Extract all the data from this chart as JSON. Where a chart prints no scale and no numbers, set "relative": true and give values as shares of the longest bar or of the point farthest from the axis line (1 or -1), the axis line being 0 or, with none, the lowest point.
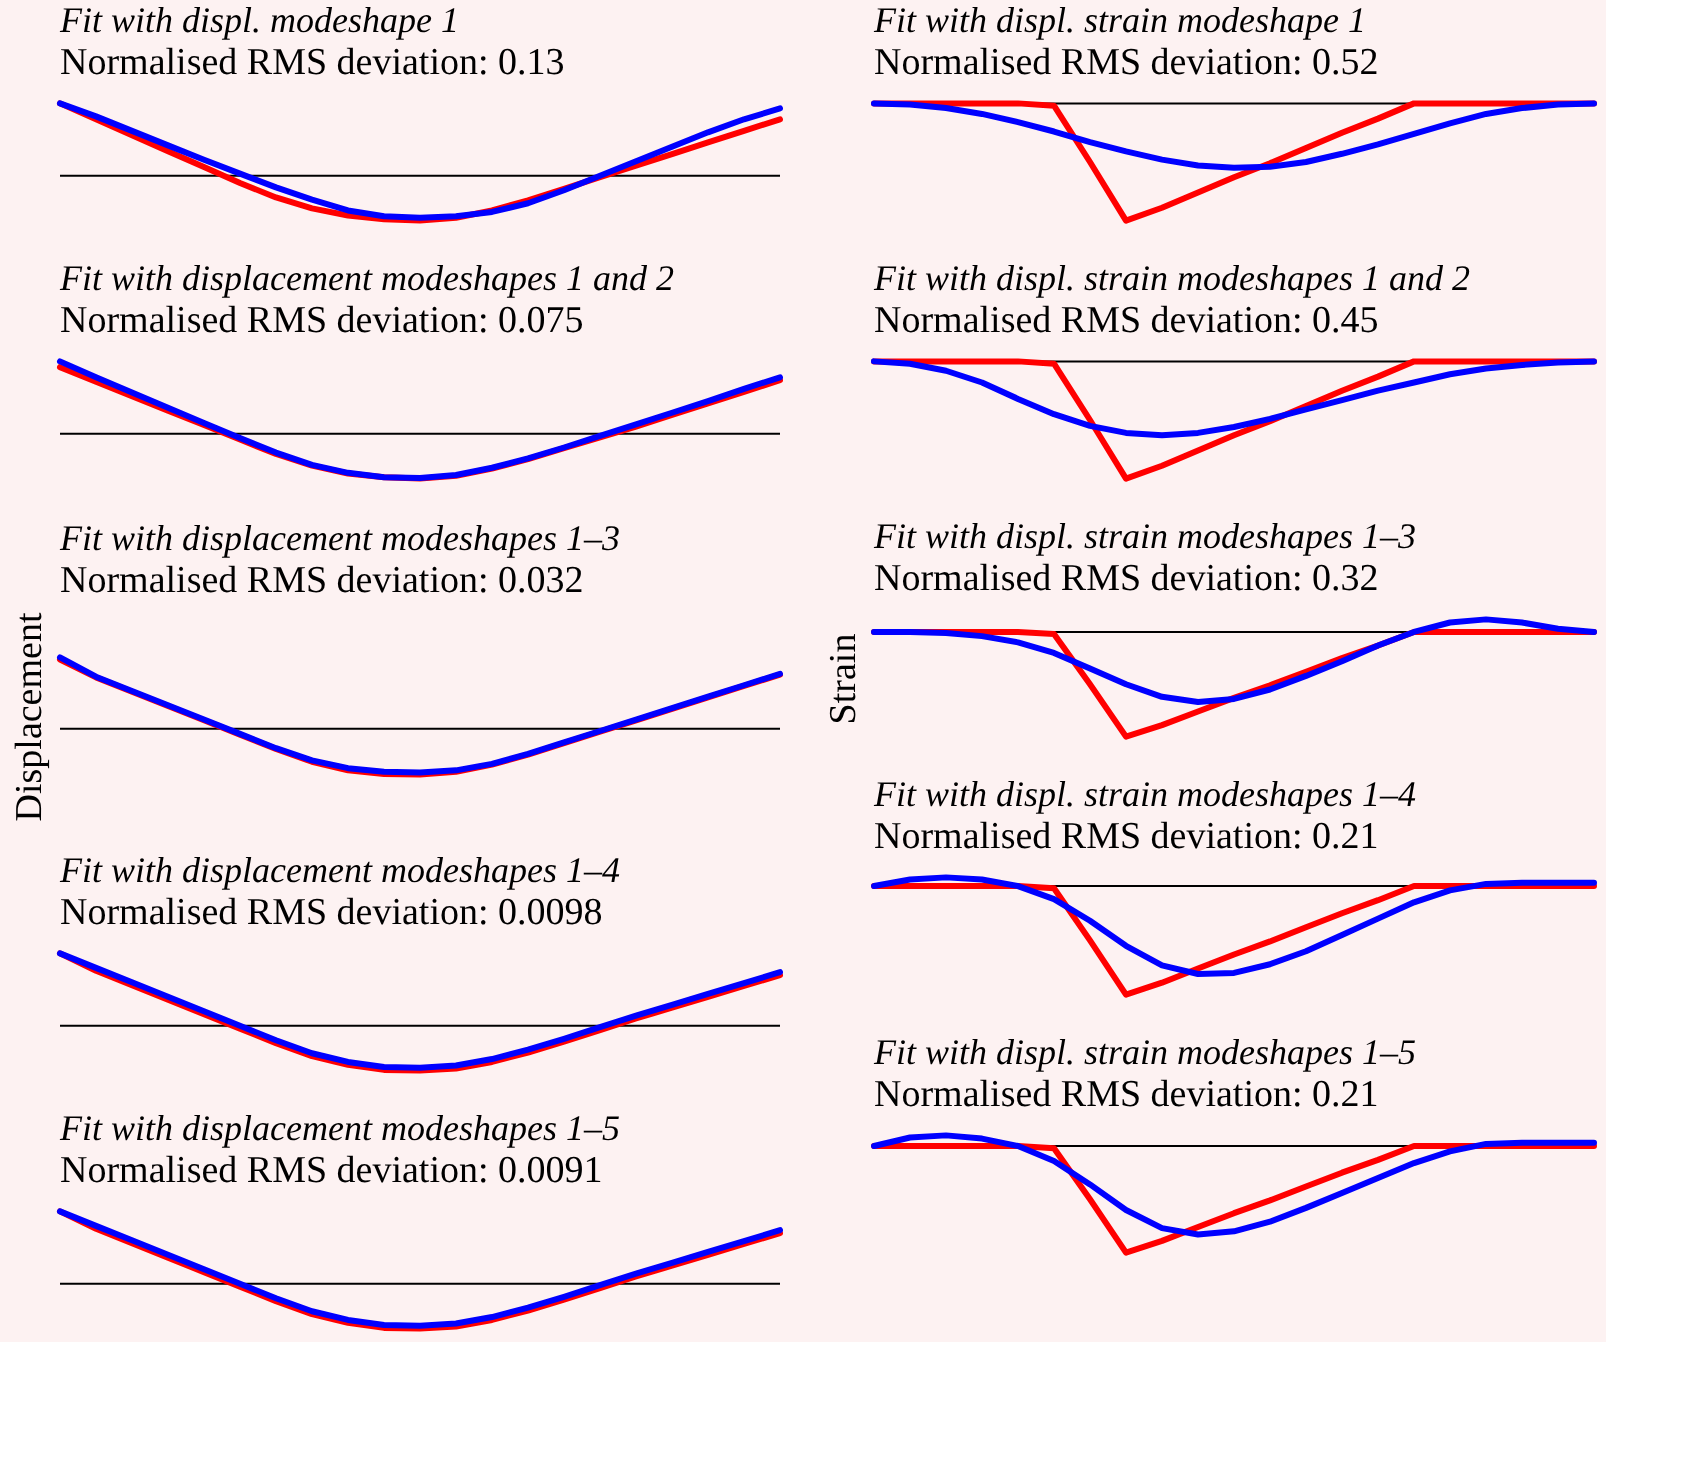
{
  "chart_data": [
    {
      "type": "line",
      "title": "Fit with displ. modeshape 1",
      "subtitle": "Normalised RMS deviation: 0.13",
      "relative": true,
      "categories": [
        null,
        null,
        null,
        null,
        null,
        null,
        null,
        null,
        null,
        null,
        null,
        null,
        null,
        null,
        null,
        null,
        null,
        null,
        null,
        null,
        null
      ],
      "series": [
        {
          "color": "#ff0000",
          "values": [
            1.0,
            0.78,
            0.56,
            0.34,
            0.12,
            -0.1,
            -0.3,
            -0.45,
            -0.55,
            -0.6,
            -0.62,
            -0.58,
            -0.48,
            -0.34,
            -0.18,
            -0.02,
            0.14,
            0.3,
            0.46,
            0.62,
            0.78
          ]
        },
        {
          "color": "#0000ff",
          "values": [
            1.0,
            0.82,
            0.62,
            0.42,
            0.22,
            0.03,
            -0.16,
            -0.33,
            -0.48,
            -0.56,
            -0.58,
            -0.56,
            -0.5,
            -0.38,
            -0.2,
            0.0,
            0.2,
            0.4,
            0.6,
            0.78,
            0.93
          ]
        }
      ]
    },
    {
      "type": "line",
      "title": "Fit with displ. strain modeshape 1",
      "subtitle": "Normalised RMS deviation: 0.52",
      "relative": true,
      "categories": [
        null,
        null,
        null,
        null,
        null,
        null,
        null,
        null,
        null,
        null,
        null,
        null,
        null,
        null,
        null,
        null,
        null,
        null,
        null,
        null,
        null
      ],
      "series": [
        {
          "color": "#ff0000",
          "values": [
            0,
            0,
            0,
            0,
            0,
            -0.02,
            -0.5,
            -1.0,
            -0.89,
            -0.76,
            -0.63,
            -0.51,
            -0.38,
            -0.25,
            -0.13,
            0,
            0,
            0,
            0,
            0,
            0
          ]
        },
        {
          "color": "#0000ff",
          "values": [
            0,
            -0.01,
            -0.04,
            -0.09,
            -0.16,
            -0.24,
            -0.33,
            -0.41,
            -0.48,
            -0.53,
            -0.55,
            -0.54,
            -0.5,
            -0.43,
            -0.35,
            -0.26,
            -0.17,
            -0.09,
            -0.04,
            -0.01,
            0
          ]
        }
      ]
    },
    {
      "type": "line",
      "title": "Fit with displacement modeshapes 1 and 2",
      "subtitle": "Normalised RMS deviation: 0.075",
      "relative": true,
      "categories": [
        null,
        null,
        null,
        null,
        null,
        null,
        null,
        null,
        null,
        null,
        null,
        null,
        null,
        null,
        null,
        null,
        null,
        null,
        null,
        null,
        null
      ],
      "series": [
        {
          "color": "#ff0000",
          "values": [
            0.92,
            0.72,
            0.52,
            0.32,
            0.12,
            -0.08,
            -0.28,
            -0.44,
            -0.55,
            -0.6,
            -0.62,
            -0.58,
            -0.48,
            -0.35,
            -0.2,
            -0.05,
            0.1,
            0.26,
            0.42,
            0.58,
            0.74
          ]
        },
        {
          "color": "#0000ff",
          "values": [
            1.0,
            0.78,
            0.57,
            0.36,
            0.15,
            -0.06,
            -0.26,
            -0.43,
            -0.54,
            -0.6,
            -0.61,
            -0.57,
            -0.47,
            -0.34,
            -0.19,
            -0.03,
            0.13,
            0.29,
            0.45,
            0.62,
            0.78
          ]
        }
      ]
    },
    {
      "type": "line",
      "title": "Fit with displ. strain modeshapes 1 and 2",
      "subtitle": "Normalised RMS deviation: 0.45",
      "relative": true,
      "categories": [
        null,
        null,
        null,
        null,
        null,
        null,
        null,
        null,
        null,
        null,
        null,
        null,
        null,
        null,
        null,
        null,
        null,
        null,
        null,
        null,
        null
      ],
      "series": [
        {
          "color": "#ff0000",
          "values": [
            0,
            0,
            0,
            0,
            0,
            -0.02,
            -0.5,
            -1.0,
            -0.89,
            -0.76,
            -0.63,
            -0.51,
            -0.38,
            -0.25,
            -0.13,
            0,
            0,
            0,
            0,
            0,
            0
          ]
        },
        {
          "color": "#0000ff",
          "values": [
            0,
            -0.02,
            -0.08,
            -0.18,
            -0.32,
            -0.45,
            -0.55,
            -0.61,
            -0.63,
            -0.61,
            -0.56,
            -0.49,
            -0.41,
            -0.33,
            -0.25,
            -0.18,
            -0.11,
            -0.06,
            -0.03,
            -0.01,
            0
          ]
        }
      ]
    },
    {
      "type": "line",
      "title": "Fit with displacement modeshapes 1–3",
      "subtitle": "Normalised RMS deviation: 0.032",
      "ylabel": "Displacement",
      "relative": true,
      "categories": [
        null,
        null,
        null,
        null,
        null,
        null,
        null,
        null,
        null,
        null,
        null,
        null,
        null,
        null,
        null,
        null,
        null,
        null,
        null,
        null,
        null
      ],
      "series": [
        {
          "color": "#ff0000",
          "values": [
            0.97,
            0.72,
            0.52,
            0.32,
            0.12,
            -0.08,
            -0.28,
            -0.46,
            -0.58,
            -0.63,
            -0.64,
            -0.6,
            -0.5,
            -0.36,
            -0.2,
            -0.04,
            0.12,
            0.28,
            0.44,
            0.6,
            0.76
          ]
        },
        {
          "color": "#0000ff",
          "values": [
            1.0,
            0.73,
            0.53,
            0.33,
            0.13,
            -0.07,
            -0.27,
            -0.44,
            -0.55,
            -0.6,
            -0.61,
            -0.58,
            -0.49,
            -0.35,
            -0.19,
            -0.03,
            0.13,
            0.29,
            0.45,
            0.61,
            0.77
          ]
        }
      ]
    },
    {
      "type": "line",
      "title": "Fit with displ. strain modeshapes 1–3",
      "subtitle": "Normalised RMS deviation: 0.32",
      "ylabel": "Strain",
      "relative": true,
      "categories": [
        null,
        null,
        null,
        null,
        null,
        null,
        null,
        null,
        null,
        null,
        null,
        null,
        null,
        null,
        null,
        null,
        null,
        null,
        null,
        null,
        null
      ],
      "series": [
        {
          "color": "#ff0000",
          "values": [
            0,
            0,
            0,
            0,
            0,
            -0.02,
            -0.5,
            -1.0,
            -0.89,
            -0.76,
            -0.63,
            -0.51,
            -0.38,
            -0.25,
            -0.13,
            0,
            0,
            0,
            0,
            0,
            0
          ]
        },
        {
          "color": "#0000ff",
          "values": [
            0,
            0,
            -0.01,
            -0.04,
            -0.1,
            -0.2,
            -0.35,
            -0.5,
            -0.62,
            -0.67,
            -0.64,
            -0.55,
            -0.42,
            -0.28,
            -0.13,
            0,
            0.09,
            0.12,
            0.09,
            0.03,
            0
          ]
        }
      ]
    },
    {
      "type": "line",
      "title": "Fit with displacement modeshapes 1–4",
      "subtitle": "Normalised RMS deviation: 0.0098",
      "relative": true,
      "categories": [
        null,
        null,
        null,
        null,
        null,
        null,
        null,
        null,
        null,
        null,
        null,
        null,
        null,
        null,
        null,
        null,
        null,
        null,
        null,
        null,
        null
      ],
      "series": [
        {
          "color": "#ff0000",
          "values": [
            1.0,
            0.76,
            0.56,
            0.36,
            0.16,
            -0.04,
            -0.24,
            -0.42,
            -0.54,
            -0.61,
            -0.62,
            -0.59,
            -0.5,
            -0.37,
            -0.22,
            -0.06,
            0.1,
            0.25,
            0.4,
            0.55,
            0.7
          ]
        },
        {
          "color": "#0000ff",
          "values": [
            1.0,
            0.8,
            0.6,
            0.4,
            0.2,
            0.0,
            -0.2,
            -0.38,
            -0.5,
            -0.57,
            -0.58,
            -0.55,
            -0.46,
            -0.33,
            -0.18,
            -0.02,
            0.14,
            0.29,
            0.44,
            0.59,
            0.74
          ]
        }
      ]
    },
    {
      "type": "line",
      "title": "Fit with displ. strain modeshapes 1–4",
      "subtitle": "Normalised RMS deviation: 0.21",
      "relative": true,
      "categories": [
        null,
        null,
        null,
        null,
        null,
        null,
        null,
        null,
        null,
        null,
        null,
        null,
        null,
        null,
        null,
        null,
        null,
        null,
        null,
        null,
        null
      ],
      "series": [
        {
          "color": "#ff0000",
          "values": [
            0,
            0,
            0,
            0,
            0,
            -0.02,
            -0.5,
            -1.0,
            -0.89,
            -0.76,
            -0.63,
            -0.51,
            -0.38,
            -0.25,
            -0.13,
            0,
            0,
            0,
            0,
            0,
            0
          ]
        },
        {
          "color": "#0000ff",
          "values": [
            0,
            0.06,
            0.08,
            0.06,
            0,
            -0.12,
            -0.32,
            -0.55,
            -0.73,
            -0.81,
            -0.8,
            -0.72,
            -0.6,
            -0.45,
            -0.3,
            -0.15,
            -0.04,
            0.02,
            0.03,
            0.03,
            0.03
          ]
        }
      ]
    },
    {
      "type": "line",
      "title": "Fit with displacement modeshapes 1–5",
      "subtitle": "Normalised RMS deviation: 0.0091",
      "relative": true,
      "categories": [
        null,
        null,
        null,
        null,
        null,
        null,
        null,
        null,
        null,
        null,
        null,
        null,
        null,
        null,
        null,
        null,
        null,
        null,
        null,
        null,
        null
      ],
      "series": [
        {
          "color": "#ff0000",
          "values": [
            1.0,
            0.76,
            0.56,
            0.36,
            0.16,
            -0.04,
            -0.24,
            -0.42,
            -0.54,
            -0.61,
            -0.62,
            -0.59,
            -0.5,
            -0.37,
            -0.22,
            -0.06,
            0.1,
            0.25,
            0.4,
            0.55,
            0.7
          ]
        },
        {
          "color": "#0000ff",
          "values": [
            1.0,
            0.8,
            0.6,
            0.4,
            0.2,
            0.0,
            -0.2,
            -0.38,
            -0.5,
            -0.57,
            -0.58,
            -0.55,
            -0.46,
            -0.33,
            -0.18,
            -0.02,
            0.14,
            0.29,
            0.44,
            0.59,
            0.74
          ]
        }
      ]
    },
    {
      "type": "line",
      "title": "Fit with displ. strain modeshapes 1–5",
      "subtitle": "Normalised RMS deviation: 0.21",
      "relative": true,
      "categories": [
        null,
        null,
        null,
        null,
        null,
        null,
        null,
        null,
        null,
        null,
        null,
        null,
        null,
        null,
        null,
        null,
        null,
        null,
        null,
        null,
        null
      ],
      "series": [
        {
          "color": "#ff0000",
          "values": [
            0,
            0,
            0,
            0,
            0,
            -0.02,
            -0.5,
            -1.0,
            -0.89,
            -0.76,
            -0.63,
            -0.51,
            -0.38,
            -0.25,
            -0.13,
            0,
            0,
            0,
            0,
            0,
            0
          ]
        },
        {
          "color": "#0000ff",
          "values": [
            0,
            0.08,
            0.1,
            0.07,
            0,
            -0.14,
            -0.36,
            -0.6,
            -0.77,
            -0.83,
            -0.8,
            -0.71,
            -0.58,
            -0.44,
            -0.3,
            -0.16,
            -0.05,
            0.02,
            0.03,
            0.03,
            0.03
          ]
        }
      ]
    }
  ]
}
